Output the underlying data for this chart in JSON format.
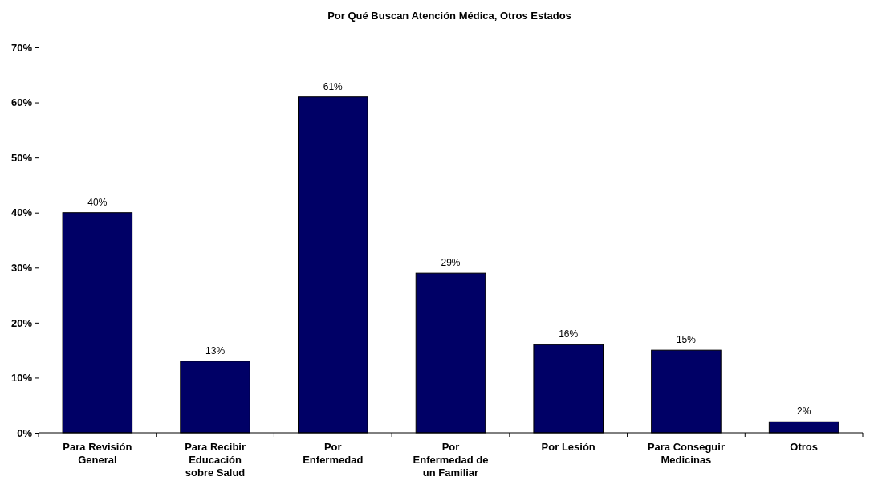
{
  "chart_data": {
    "type": "bar",
    "title": "Por Qué Buscan Atención Médica, Otros Estados",
    "categories": [
      "Para Revisión General",
      "Para Recibir Educación sobre Salud",
      "Por Enfermedad",
      "Por Enfermedad de un Familiar",
      "Por Lesión",
      "Para Conseguir Medicinas",
      "Otros"
    ],
    "values": [
      40,
      13,
      61,
      29,
      16,
      15,
      2
    ],
    "value_labels": [
      "40%",
      "13%",
      "61%",
      "29%",
      "16%",
      "15%",
      "2%"
    ],
    "color": "#000066",
    "ylim": [
      0,
      70
    ],
    "yticks": [
      {
        "value": 0,
        "label": "0%"
      },
      {
        "value": 10,
        "label": "10%"
      },
      {
        "value": 20,
        "label": "20%"
      },
      {
        "value": 30,
        "label": "30%"
      },
      {
        "value": 40,
        "label": "40%"
      },
      {
        "value": 50,
        "label": "50%"
      },
      {
        "value": 60,
        "label": "60%"
      },
      {
        "value": 70,
        "label": "70%"
      }
    ],
    "grid": false
  }
}
